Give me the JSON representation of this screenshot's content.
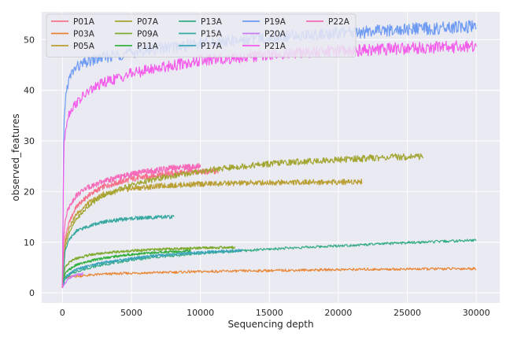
{
  "chart_data": {
    "type": "line",
    "xlabel": "Sequencing depth",
    "ylabel": "observed_features",
    "xlim": [
      -1500,
      31700
    ],
    "ylim": [
      -2,
      55.5
    ],
    "xticks": [
      0,
      5000,
      10000,
      15000,
      20000,
      25000,
      30000
    ],
    "yticks": [
      0,
      10,
      20,
      30,
      40,
      50
    ],
    "grid": true,
    "legend_position": "top-left",
    "legend_columns": 5,
    "background": "#eaeaf2",
    "series": [
      {
        "name": "P01A",
        "color": "#f77189",
        "x": [
          0,
          200,
          500,
          1000,
          2000,
          3000,
          5000,
          7000,
          9000,
          11300
        ],
        "y": [
          1,
          11,
          14,
          17,
          19.5,
          21,
          22.5,
          23.3,
          23.8,
          24
        ]
      },
      {
        "name": "P03A",
        "color": "#e98532",
        "x": [
          0,
          200,
          500,
          1000,
          2000,
          3000,
          5000,
          10000,
          15000,
          20000,
          25000,
          30000
        ],
        "y": [
          1,
          2.8,
          3.1,
          3.3,
          3.5,
          3.7,
          3.9,
          4.2,
          4.4,
          4.6,
          4.7,
          4.8
        ]
      },
      {
        "name": "P05A",
        "color": "#b99f32",
        "x": [
          0,
          200,
          500,
          1000,
          2000,
          3000,
          5000,
          7000,
          10000,
          15000,
          20000,
          21700
        ],
        "y": [
          1,
          10,
          13,
          15.5,
          18,
          19.5,
          20.6,
          21.1,
          21.5,
          21.8,
          21.9,
          22
        ]
      },
      {
        "name": "P07A",
        "color": "#a2a631",
        "x": [
          0,
          200,
          500,
          1000,
          2000,
          3000,
          5000,
          7000,
          10000,
          13000,
          16000,
          20000,
          23000,
          26200
        ],
        "y": [
          1,
          9,
          12,
          14.5,
          17.5,
          19.3,
          21.3,
          22.6,
          24,
          25,
          25.7,
          26.3,
          26.7,
          27
        ]
      },
      {
        "name": "P09A",
        "color": "#7fab31",
        "x": [
          0,
          200,
          500,
          1000,
          2000,
          3000,
          5000,
          7000,
          9000,
          12500
        ],
        "y": [
          1,
          5,
          6,
          6.8,
          7.5,
          7.9,
          8.3,
          8.6,
          8.8,
          9
        ]
      },
      {
        "name": "P11A",
        "color": "#33b040",
        "x": [
          0,
          200,
          500,
          1000,
          2000,
          3000,
          5000,
          7000,
          9300
        ],
        "y": [
          1,
          3.8,
          4.6,
          5.5,
          6.3,
          6.9,
          7.6,
          8,
          8.3
        ]
      },
      {
        "name": "P13A",
        "color": "#35ac85",
        "x": [
          0,
          200,
          500,
          1000,
          2000,
          3000,
          5000,
          7000,
          10000,
          13000,
          16000,
          20000,
          25000,
          30000
        ],
        "y": [
          1,
          2.8,
          3.5,
          4.2,
          5,
          5.6,
          6.5,
          7.1,
          7.8,
          8.3,
          8.8,
          9.3,
          9.9,
          10.4
        ]
      },
      {
        "name": "P15A",
        "color": "#36a8a0",
        "x": [
          0,
          200,
          500,
          1000,
          2000,
          3000,
          4000,
          5000,
          6500,
          8100
        ],
        "y": [
          1,
          8.5,
          10.5,
          12.2,
          13.3,
          14,
          14.4,
          14.7,
          14.9,
          15
        ]
      },
      {
        "name": "P17A",
        "color": "#38a4b9",
        "x": [
          0,
          200,
          500,
          1000,
          2000,
          3000,
          5000,
          7000,
          10000,
          13000
        ],
        "y": [
          1,
          3,
          3.8,
          4.6,
          5.4,
          6,
          6.8,
          7.4,
          8,
          8.4
        ]
      },
      {
        "name": "P19A",
        "color": "#6e9bf4",
        "x": [
          0,
          100,
          200,
          400,
          700,
          1000,
          2000,
          3000,
          5000,
          7000,
          10000,
          15000,
          20000,
          25000,
          30000
        ],
        "y": [
          1,
          32,
          38,
          41.5,
          43.5,
          44.5,
          45.8,
          46.5,
          47.5,
          48.3,
          49.2,
          50.4,
          51.3,
          52,
          52.5
        ]
      },
      {
        "name": "P20A",
        "color": "#cc7af4",
        "x": [
          0,
          500,
          1000,
          1500
        ],
        "y": [
          1,
          3,
          3.5,
          3.8
        ]
      },
      {
        "name": "P21A",
        "color": "#f45deb",
        "x": [
          0,
          100,
          200,
          400,
          700,
          1000,
          2000,
          3000,
          5000,
          7000,
          10000,
          15000,
          20000,
          25000,
          30000
        ],
        "y": [
          1,
          28,
          32,
          35,
          36.5,
          37.5,
          40,
          41.5,
          43.3,
          44.5,
          45.8,
          47,
          47.8,
          48.3,
          48.7
        ]
      },
      {
        "name": "P22A",
        "color": "#f66ab9",
        "x": [
          0,
          100,
          200,
          400,
          700,
          1000,
          1500,
          2000,
          3000,
          4000,
          5000,
          6000,
          8000,
          10000
        ],
        "y": [
          1,
          11,
          14.5,
          16.5,
          18,
          19.2,
          20.3,
          21,
          22,
          22.8,
          23.4,
          23.9,
          24.6,
          25
        ]
      }
    ]
  }
}
